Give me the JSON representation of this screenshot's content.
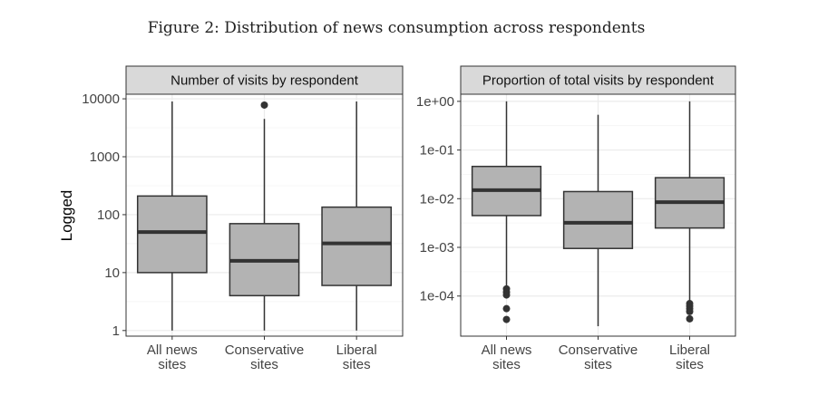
{
  "figure_caption": "Figure 2: Distribution of news consumption across respondents",
  "colors": {
    "box_fill": "#b3b3b3",
    "box_stroke": "#333333",
    "strip_fill": "#d9d9d9",
    "grid_major": "#ebebeb",
    "grid_minor": "#f4f4f4",
    "panel_border": "#333333"
  },
  "chart_data": [
    {
      "type": "boxplot",
      "title": "Number of visits by respondent",
      "ylabel": "Logged",
      "yscale": "log10",
      "ylim": [
        0.8,
        12000
      ],
      "yticks": [
        1,
        10,
        100,
        1000,
        10000
      ],
      "ytick_labels": [
        "1",
        "10",
        "100",
        "1000",
        "10000"
      ],
      "categories": [
        [
          "All news",
          "sites"
        ],
        [
          "Conservative",
          "sites"
        ],
        [
          "Liberal",
          "sites"
        ]
      ],
      "boxes": [
        {
          "whisker_low": 1,
          "q1": 10,
          "median": 50,
          "q3": 210,
          "whisker_high": 9000,
          "outliers": []
        },
        {
          "whisker_low": 1,
          "q1": 4,
          "median": 16,
          "q3": 70,
          "whisker_high": 4500,
          "outliers": [
            7800
          ]
        },
        {
          "whisker_low": 1,
          "q1": 6,
          "median": 32,
          "q3": 135,
          "whisker_high": 9000,
          "outliers": []
        }
      ]
    },
    {
      "type": "boxplot",
      "title": "Proportion of total visits by respondent",
      "ylabel": "",
      "yscale": "log10",
      "ylim": [
        1.5e-05,
        1.4
      ],
      "yticks": [
        0.0001,
        0.001,
        0.01,
        0.1,
        1
      ],
      "ytick_labels": [
        "1e-04",
        "1e-03",
        "1e-02",
        "1e-01",
        "1e+00"
      ],
      "categories": [
        [
          "All news",
          "sites"
        ],
        [
          "Conservative",
          "sites"
        ],
        [
          "Liberal",
          "sites"
        ]
      ],
      "boxes": [
        {
          "whisker_low": 0.00015,
          "q1": 0.0045,
          "median": 0.015,
          "q3": 0.046,
          "whisker_high": 1,
          "outliers": [
            0.00014,
            0.00012,
            0.000105,
            5.5e-05,
            3.3e-05
          ]
        },
        {
          "whisker_low": 2.4e-05,
          "q1": 0.00095,
          "median": 0.0032,
          "q3": 0.014,
          "whisker_high": 0.53,
          "outliers": []
        },
        {
          "whisker_low": 7e-05,
          "q1": 0.0025,
          "median": 0.0085,
          "q3": 0.027,
          "whisker_high": 1,
          "outliers": [
            7e-05,
            6.2e-05,
            5.5e-05,
            4.8e-05,
            3.4e-05
          ]
        }
      ]
    }
  ]
}
